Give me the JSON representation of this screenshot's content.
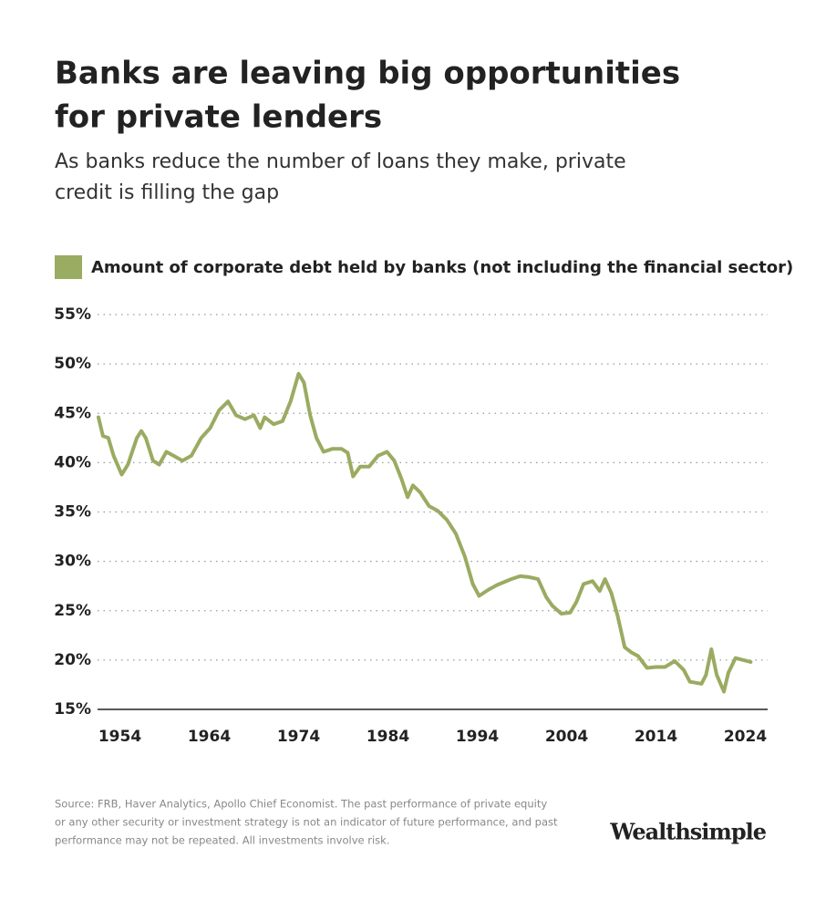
{
  "chart_data": {
    "type": "line",
    "title": [
      "Banks are leaving big opportunities",
      "for private lenders"
    ],
    "subtitle": [
      "As banks reduce the number of loans they make, private",
      "credit is filling the gap"
    ],
    "series": [
      {
        "name": "Amount of corporate debt held by banks (not including the financial sector)",
        "color": "#9aab62",
        "x": [
          1951.6,
          1952.1,
          1952.7,
          1953.3,
          1954.2,
          1954.9,
          1955.9,
          1956.4,
          1956.9,
          1957.7,
          1958.4,
          1959.2,
          1960.0,
          1961.0,
          1962.0,
          1963.1,
          1964.1,
          1965.1,
          1966.1,
          1967.0,
          1968.0,
          1969.0,
          1969.7,
          1970.2,
          1971.2,
          1972.2,
          1973.1,
          1974.0,
          1974.6,
          1975.3,
          1976.0,
          1976.8,
          1977.8,
          1978.8,
          1979.5,
          1980.1,
          1980.9,
          1981.9,
          1982.9,
          1983.9,
          1984.7,
          1985.5,
          1986.2,
          1986.8,
          1987.6,
          1988.6,
          1989.6,
          1990.6,
          1991.6,
          1992.6,
          1993.5,
          1994.2,
          1995.2,
          1996.2,
          1997.8,
          1998.8,
          1999.8,
          2000.8,
          2001.7,
          2002.4,
          2003.4,
          2004.4,
          2005.1,
          2005.9,
          2006.9,
          2007.7,
          2008.3,
          2009.0,
          2009.7,
          2010.5,
          2011.2,
          2012.0,
          2013.0,
          2014.0,
          2015.0,
          2016.1,
          2017.1,
          2017.8,
          2019.1,
          2019.6,
          2020.2,
          2020.8,
          2021.6,
          2022.1,
          2022.9,
          2023.8,
          2024.6
        ],
        "values": [
          44.6,
          42.7,
          42.5,
          40.7,
          38.8,
          39.8,
          42.5,
          43.2,
          42.5,
          40.2,
          39.8,
          41.1,
          40.7,
          40.2,
          40.7,
          42.5,
          43.5,
          45.3,
          46.2,
          44.8,
          44.4,
          44.8,
          43.5,
          44.6,
          43.9,
          44.2,
          46.2,
          49.0,
          48.1,
          44.8,
          42.5,
          41.1,
          41.4,
          41.4,
          41.0,
          38.6,
          39.6,
          39.6,
          40.7,
          41.1,
          40.2,
          38.4,
          36.5,
          37.7,
          37.0,
          35.6,
          35.1,
          34.2,
          32.8,
          30.5,
          27.7,
          26.5,
          27.1,
          27.6,
          28.2,
          28.5,
          28.4,
          28.2,
          26.4,
          25.5,
          24.7,
          24.8,
          25.9,
          27.7,
          28.0,
          27.0,
          28.2,
          26.8,
          24.5,
          21.3,
          20.8,
          20.4,
          19.2,
          19.3,
          19.3,
          19.9,
          19.0,
          17.8,
          17.6,
          18.5,
          21.1,
          18.5,
          16.8,
          18.7,
          20.2,
          20.0,
          19.8
        ]
      }
    ],
    "xlim": [
      1951.5,
      2026.5
    ],
    "xticks": [
      1954,
      1964,
      1974,
      1984,
      1994,
      2004,
      2014,
      2024
    ],
    "ylim": [
      15,
      55
    ],
    "yticks": [
      {
        "value": 15,
        "label": "15%"
      },
      {
        "value": 20,
        "label": "20%"
      },
      {
        "value": 25,
        "label": "25%"
      },
      {
        "value": 30,
        "label": "30%"
      },
      {
        "value": 35,
        "label": "35%"
      },
      {
        "value": 40,
        "label": "40%"
      },
      {
        "value": 45,
        "label": "45%"
      },
      {
        "value": 50,
        "label": "50%"
      },
      {
        "value": 55,
        "label": "55%"
      }
    ],
    "grid": true,
    "source": [
      "Source: FRB, Haver Analytics, Apollo Chief Economist. The past performance of private equity",
      "or any other security or investment strategy is not an indicator of future performance, and past",
      "performance may not be repeated. All investments involve risk."
    ],
    "logo": "Wealthsimple"
  }
}
